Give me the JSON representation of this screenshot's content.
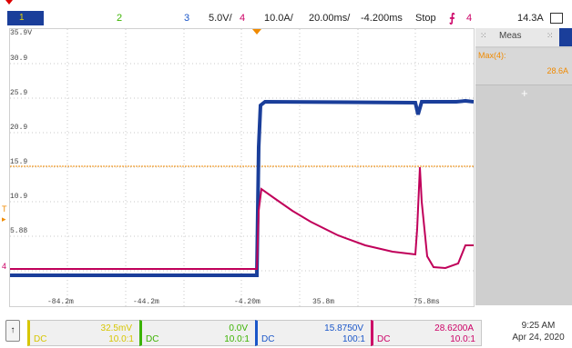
{
  "top_toolbar": {
    "ch1_label": "1",
    "ch2_label": "2",
    "ch3_label": "3",
    "ch3_scale": "5.0V/",
    "ch4_label": "4",
    "ch4_scale": "10.0A/",
    "timebase": "20.00ms/",
    "delay": "-4.200ms",
    "run_state": "Stop",
    "trigger_source": "4",
    "trigger_level": "14.3A"
  },
  "plot": {
    "y_labels": [
      "35.9V",
      "30.9",
      "25.9",
      "20.9",
      "15.9",
      "10.9",
      "5.88"
    ],
    "x_labels": [
      "-84.2m",
      "-44.2m",
      "-4.20m",
      "35.8m",
      "75.8ms"
    ],
    "trigger_marker": "T",
    "ch4_ground_marker": "4"
  },
  "meas_panel": {
    "title": "Meas",
    "item_name": "Max(4):",
    "item_value": "28.6A"
  },
  "channel_boxes": [
    {
      "value": "32.5mV",
      "coupling": "DC",
      "ratio": "10.0:1",
      "color": "#d7c600"
    },
    {
      "value": "0.0V",
      "coupling": "DC",
      "ratio": "10.0:1",
      "color": "#3bb300"
    },
    {
      "value": "15.8750V",
      "coupling": "DC",
      "ratio": "100:1",
      "color": "#1a56c9"
    },
    {
      "value": "28.6200A",
      "coupling": "DC",
      "ratio": "10.0:1",
      "color": "#cc0066"
    }
  ],
  "datetime": {
    "time": "9:25 AM",
    "date": "Apr 24, 2020"
  },
  "colors": {
    "ch1": "#e6d400",
    "ch2": "#3bb300",
    "ch3": "#1a56c9",
    "ch4": "#cc0066",
    "trigger": "#f08a00"
  }
}
